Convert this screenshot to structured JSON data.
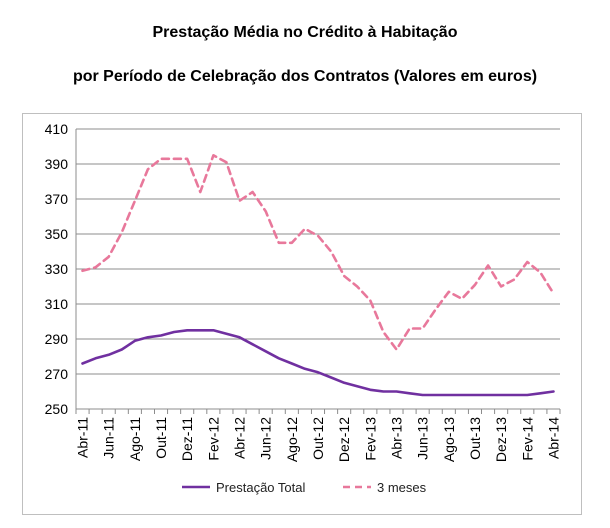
{
  "chart_data": {
    "type": "line",
    "title": "Prestação Média no Crédito à Habitação",
    "subtitle": "por Período de Celebração dos Contratos (Valores em euros)",
    "xlabel": "",
    "ylabel": "",
    "ylim": [
      250,
      410
    ],
    "yticks": [
      250,
      270,
      290,
      310,
      330,
      350,
      370,
      390,
      410
    ],
    "grid": true,
    "legend": "bottom",
    "x": [
      "Abr-11",
      "Mai-11",
      "Jun-11",
      "Jul-11",
      "Ago-11",
      "Set-11",
      "Out-11",
      "Nov-11",
      "Dez-11",
      "Jan-12",
      "Fev-12",
      "Mar-12",
      "Abr-12",
      "Mai-12",
      "Jun-12",
      "Jul-12",
      "Ago-12",
      "Set-12",
      "Out-12",
      "Nov-12",
      "Dez-12",
      "Jan-13",
      "Fev-13",
      "Mar-13",
      "Abr-13",
      "Mai-13",
      "Jun-13",
      "Jul-13",
      "Ago-13",
      "Set-13",
      "Out-13",
      "Nov-13",
      "Dez-13",
      "Jan-14",
      "Fev-14",
      "Mar-14",
      "Abr-14"
    ],
    "xtick_labels": [
      "Abr-11",
      "Jun-11",
      "Ago-11",
      "Out-11",
      "Dez-11",
      "Fev-12",
      "Abr-12",
      "Jun-12",
      "Ago-12",
      "Out-12",
      "Dez-12",
      "Fev-13",
      "Abr-13",
      "Jun-13",
      "Ago-13",
      "Out-13",
      "Dez-13",
      "Fev-14",
      "Abr-14"
    ],
    "series": [
      {
        "name": "Prestação Total",
        "color": "#7030a0",
        "style": "solid",
        "values": [
          276,
          279,
          281,
          284,
          289,
          291,
          292,
          294,
          295,
          295,
          295,
          293,
          291,
          287,
          283,
          279,
          276,
          273,
          271,
          268,
          265,
          263,
          261,
          260,
          260,
          259,
          258,
          258,
          258,
          258,
          258,
          258,
          258,
          258,
          258,
          259,
          260
        ]
      },
      {
        "name": "3 meses",
        "color": "#e8789b",
        "style": "dashed",
        "values": [
          329,
          331,
          337,
          351,
          369,
          387,
          393,
          393,
          393,
          374,
          395,
          391,
          369,
          374,
          363,
          345,
          345,
          353,
          349,
          340,
          326,
          320,
          312,
          294,
          284,
          296,
          296,
          307,
          317,
          313,
          321,
          332,
          320,
          324,
          334,
          328,
          316
        ]
      }
    ]
  }
}
